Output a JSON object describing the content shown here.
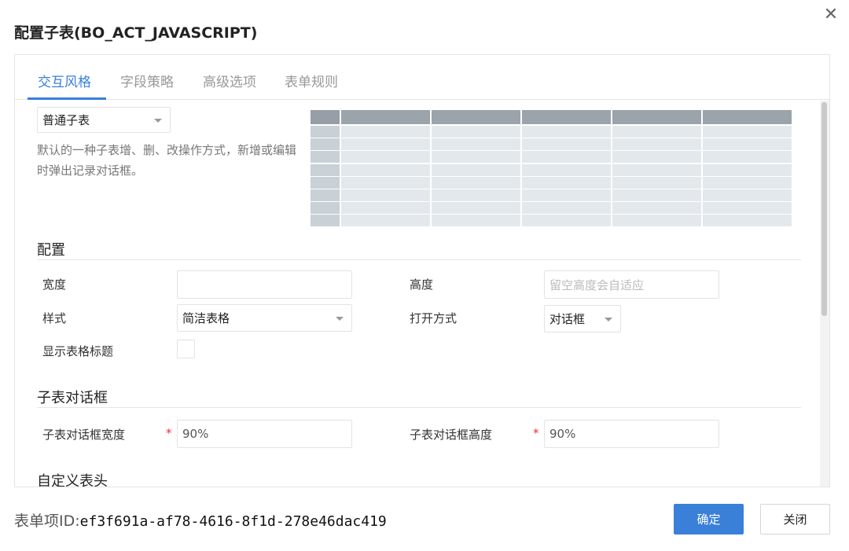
{
  "dialog": {
    "title": "配置子表(BO_ACT_JAVASCRIPT)",
    "close_icon": "close-icon"
  },
  "tabs": [
    {
      "label": "交互风格",
      "active": true
    },
    {
      "label": "字段策略"
    },
    {
      "label": "高级选项"
    },
    {
      "label": "表单规则"
    }
  ],
  "style_select": {
    "value": "普通子表",
    "description": "默认的一种子表增、删、改操作方式，新增或编辑时弹出记录对话框。"
  },
  "config": {
    "section_title": "配置",
    "width_label": "宽度",
    "width_value": "",
    "height_label": "高度",
    "height_placeholder": "留空高度会自适应",
    "style_label": "样式",
    "style_value": "简洁表格",
    "open_label": "打开方式",
    "open_value": "对话框",
    "show_title_label": "显示表格标题",
    "show_title_checked": false
  },
  "dialog_section": {
    "section_title": "子表对话框",
    "width_label": "子表对话框宽度",
    "width_value": "90%",
    "height_label": "子表对话框高度",
    "height_value": "90%",
    "required_mark": "*"
  },
  "custom_header": {
    "section_title": "自定义表头"
  },
  "footer": {
    "id_label": "表单项ID:",
    "id_value": "ef3f691a-af78-4616-8f1d-278e46dac419",
    "ok_label": "确定",
    "close_label": "关闭"
  },
  "colors": {
    "accent": "#3a7fd8",
    "required": "#e33333"
  }
}
